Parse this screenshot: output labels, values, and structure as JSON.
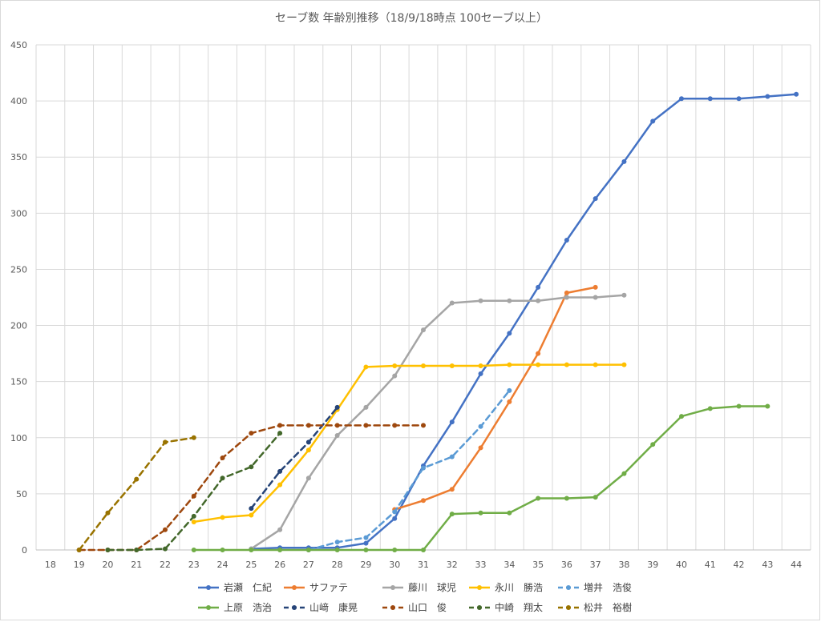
{
  "chart_data": {
    "type": "line",
    "title": "セーブ数 年齢別推移（18/9/18時点 100セーブ以上）",
    "xlabel": "",
    "ylabel": "",
    "x": [
      18,
      19,
      20,
      21,
      22,
      23,
      24,
      25,
      26,
      27,
      28,
      29,
      30,
      31,
      32,
      33,
      34,
      35,
      36,
      37,
      38,
      39,
      40,
      41,
      42,
      43,
      44
    ],
    "xlim": [
      17.5,
      44.5
    ],
    "ylim": [
      0,
      450
    ],
    "yticks": [
      0,
      50,
      100,
      150,
      200,
      250,
      300,
      350,
      400,
      450
    ],
    "grid": "vertical and horizontal",
    "legend_position": "bottom",
    "series": [
      {
        "name": "岩瀬　仁紀",
        "color": "#4472c4",
        "dash": "solid",
        "points": [
          [
            25,
            1
          ],
          [
            26,
            2
          ],
          [
            27,
            2
          ],
          [
            28,
            2
          ],
          [
            29,
            6
          ],
          [
            30,
            28
          ],
          [
            31,
            75
          ],
          [
            32,
            114
          ],
          [
            33,
            157
          ],
          [
            34,
            193
          ],
          [
            35,
            234
          ],
          [
            36,
            276
          ],
          [
            37,
            313
          ],
          [
            38,
            346
          ],
          [
            39,
            382
          ],
          [
            40,
            402
          ],
          [
            41,
            402
          ],
          [
            42,
            402
          ],
          [
            43,
            404
          ],
          [
            44,
            406
          ]
        ]
      },
      {
        "name": "サファテ",
        "color": "#ed7d31",
        "dash": "solid",
        "points": [
          [
            30,
            36
          ],
          [
            31,
            44
          ],
          [
            32,
            54
          ],
          [
            33,
            91
          ],
          [
            34,
            132
          ],
          [
            35,
            175
          ],
          [
            36,
            229
          ],
          [
            37,
            234
          ]
        ]
      },
      {
        "name": "藤川　球児",
        "color": "#a5a5a5",
        "dash": "solid",
        "points": [
          [
            25,
            1
          ],
          [
            26,
            18
          ],
          [
            27,
            64
          ],
          [
            28,
            102
          ],
          [
            29,
            127
          ],
          [
            30,
            155
          ],
          [
            31,
            196
          ],
          [
            32,
            220
          ],
          [
            33,
            222
          ],
          [
            34,
            222
          ],
          [
            35,
            222
          ],
          [
            36,
            225
          ],
          [
            37,
            225
          ],
          [
            38,
            227
          ]
        ]
      },
      {
        "name": "永川　勝浩",
        "color": "#ffc000",
        "dash": "solid",
        "points": [
          [
            23,
            25
          ],
          [
            24,
            29
          ],
          [
            25,
            31
          ],
          [
            26,
            58
          ],
          [
            27,
            89
          ],
          [
            28,
            125
          ],
          [
            29,
            163
          ],
          [
            30,
            164
          ],
          [
            31,
            164
          ],
          [
            32,
            164
          ],
          [
            33,
            164
          ],
          [
            34,
            165
          ],
          [
            35,
            165
          ],
          [
            36,
            165
          ],
          [
            37,
            165
          ],
          [
            38,
            165
          ]
        ]
      },
      {
        "name": "増井　浩俊",
        "color": "#5b9bd5",
        "dash": "dashed",
        "points": [
          [
            27,
            0
          ],
          [
            28,
            7
          ],
          [
            29,
            11
          ],
          [
            30,
            34
          ],
          [
            31,
            73
          ],
          [
            32,
            83
          ],
          [
            33,
            110
          ],
          [
            34,
            142
          ]
        ]
      },
      {
        "name": "上原　浩治",
        "color": "#70ad47",
        "dash": "solid",
        "points": [
          [
            23,
            0
          ],
          [
            24,
            0
          ],
          [
            25,
            0
          ],
          [
            26,
            0
          ],
          [
            27,
            0
          ],
          [
            28,
            0
          ],
          [
            29,
            0
          ],
          [
            30,
            0
          ],
          [
            31,
            0
          ],
          [
            32,
            32
          ],
          [
            33,
            33
          ],
          [
            34,
            33
          ],
          [
            35,
            46
          ],
          [
            36,
            46
          ],
          [
            37,
            47
          ],
          [
            38,
            68
          ],
          [
            39,
            94
          ],
          [
            40,
            119
          ],
          [
            41,
            126
          ],
          [
            42,
            128
          ],
          [
            43,
            128
          ]
        ]
      },
      {
        "name": "山﨑　康晃",
        "color": "#264478",
        "dash": "dashed",
        "points": [
          [
            25,
            37
          ],
          [
            26,
            70
          ],
          [
            27,
            96
          ],
          [
            28,
            127
          ]
        ]
      },
      {
        "name": "山口　俊",
        "color": "#9e480e",
        "dash": "dashed",
        "points": [
          [
            19,
            0
          ],
          [
            20,
            0
          ],
          [
            21,
            0
          ],
          [
            22,
            18
          ],
          [
            23,
            48
          ],
          [
            24,
            82
          ],
          [
            25,
            104
          ],
          [
            26,
            111
          ],
          [
            27,
            111
          ],
          [
            28,
            111
          ],
          [
            29,
            111
          ],
          [
            30,
            111
          ],
          [
            31,
            111
          ]
        ]
      },
      {
        "name": "中崎　翔太",
        "color": "#43682b",
        "dash": "dashed",
        "points": [
          [
            20,
            0
          ],
          [
            21,
            0
          ],
          [
            22,
            1
          ],
          [
            23,
            30
          ],
          [
            24,
            64
          ],
          [
            25,
            74
          ],
          [
            26,
            104
          ]
        ]
      },
      {
        "name": "松井　裕樹",
        "color": "#997300",
        "dash": "dashed",
        "points": [
          [
            19,
            0
          ],
          [
            20,
            33
          ],
          [
            21,
            63
          ],
          [
            22,
            96
          ],
          [
            23,
            100
          ]
        ]
      }
    ]
  }
}
